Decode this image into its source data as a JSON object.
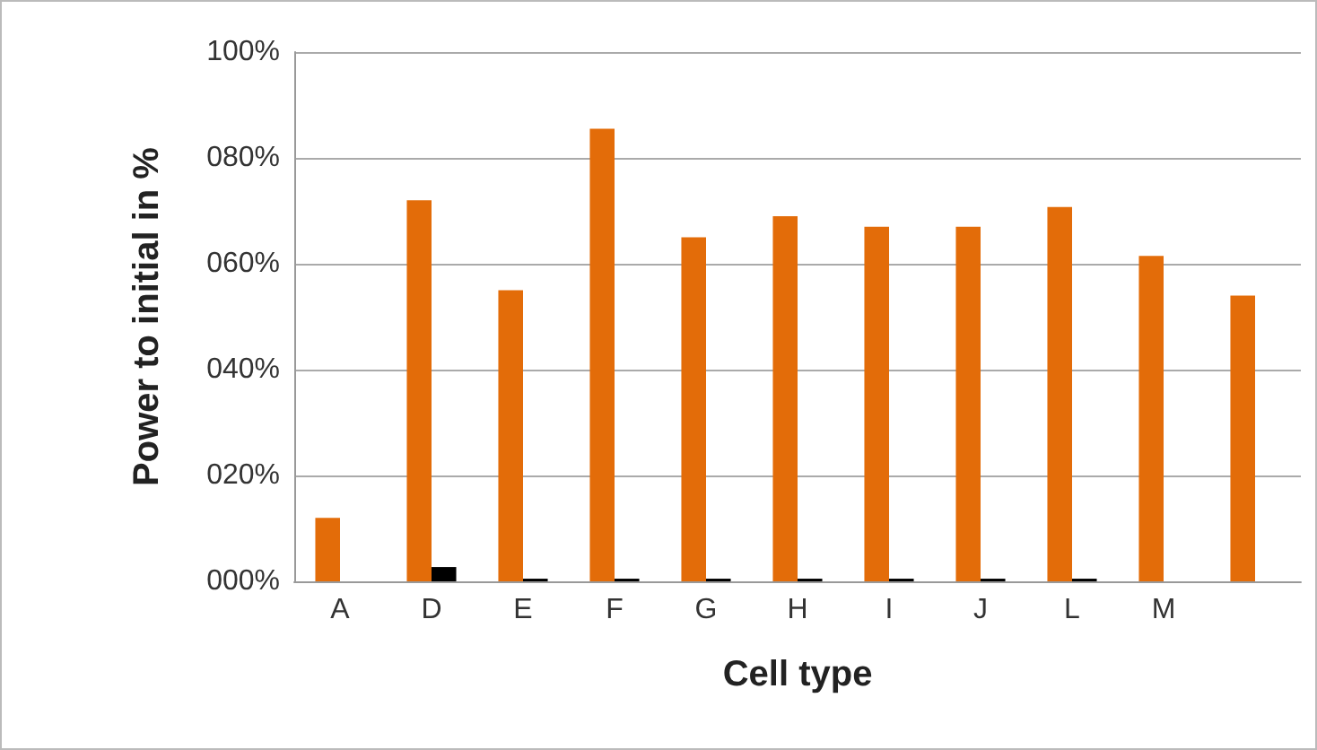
{
  "chart_data": {
    "type": "bar",
    "xlabel": "Cell type",
    "ylabel": "Power to initial in %",
    "categories": [
      "A",
      "D",
      "E",
      "F",
      "G",
      "H",
      "I",
      "J",
      "L",
      "M",
      null
    ],
    "series": [
      {
        "color": "#e36c09",
        "values": [
          12,
          72,
          55,
          85.5,
          65,
          69,
          67,
          67,
          70.7,
          61.5,
          54
        ]
      },
      {
        "color": "#000000",
        "values": [
          null,
          2.7,
          0.5,
          0.5,
          0.5,
          0.5,
          0.5,
          0.5,
          0.5,
          null,
          null
        ]
      }
    ],
    "ylim": [
      0,
      100
    ],
    "yticks": [
      {
        "value": 0,
        "label": "000%"
      },
      {
        "value": 20,
        "label": "020%"
      },
      {
        "value": 40,
        "label": "040%"
      },
      {
        "value": 60,
        "label": "060%"
      },
      {
        "value": 80,
        "label": "080%"
      },
      {
        "value": 100,
        "label": "100%"
      }
    ],
    "grid": "y"
  }
}
